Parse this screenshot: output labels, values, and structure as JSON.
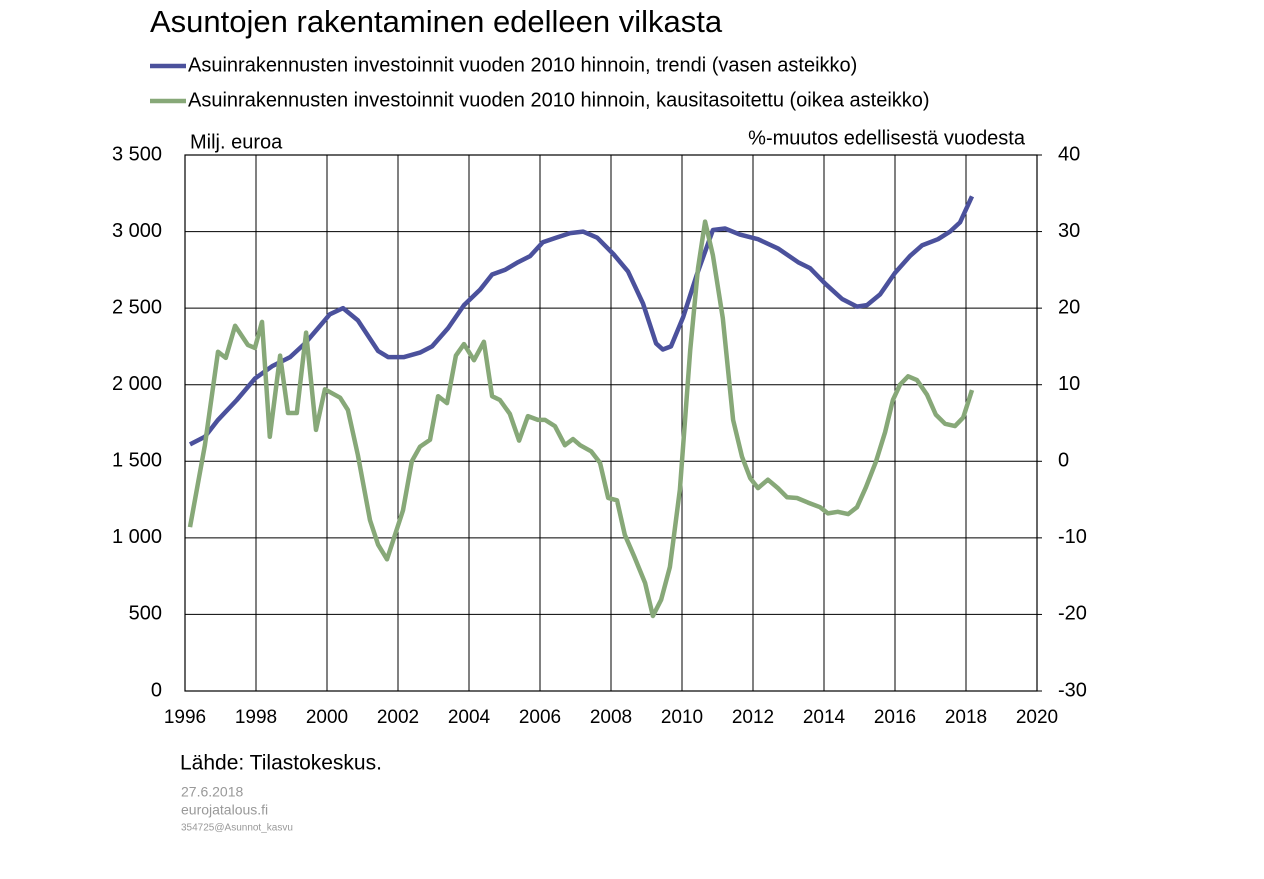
{
  "chart_data": {
    "type": "line",
    "title": "Asuntojen rakentaminen edelleen vilkasta",
    "ylabel": "Milj. euroa",
    "y2label": "%-muutos edellisestä vuodesta",
    "source": "Lähde: Tilastokeskus.",
    "date": "27.6.2018",
    "site": "eurojatalous.fi",
    "code": "354725@Asunnot_kasvu",
    "grid": true,
    "legend": "top",
    "xlim": [
      1996,
      2020
    ],
    "xticks": [
      1996,
      1998,
      2000,
      2002,
      2004,
      2006,
      2008,
      2010,
      2012,
      2014,
      2016,
      2018,
      2020
    ],
    "ylim": [
      0,
      3500
    ],
    "yticks": [
      0,
      500,
      {
        "value": 1000,
        "label": "1 000"
      },
      {
        "value": 1500,
        "label": "1 500"
      },
      {
        "value": 2000,
        "label": "2 000"
      },
      {
        "value": 2500,
        "label": "2 500"
      },
      {
        "value": 3000,
        "label": "3 000"
      },
      {
        "value": 3500,
        "label": "3 500"
      }
    ],
    "y2lim": [
      -30,
      40
    ],
    "y2ticks": [
      -30,
      -20,
      -10,
      0,
      10,
      20,
      30,
      40
    ],
    "series": [
      {
        "name": "Asuinrakennusten investoinnit vuoden 2010 hinnoin, trendi (vasen asteikko)",
        "color": "#4b519c",
        "x": [
          1996.14,
          1996.56,
          1996.93,
          1997.46,
          1997.97,
          1998.45,
          1998.96,
          1999.38,
          1999.75,
          2000.08,
          2000.45,
          2000.87,
          2001.44,
          2001.72,
          2002.17,
          2002.62,
          2002.96,
          2003.41,
          2003.86,
          2004.31,
          2004.65,
          2005.01,
          2005.38,
          2005.72,
          2006.08,
          2006.45,
          2006.85,
          2007.21,
          2007.61,
          2008.08,
          2008.48,
          2008.9,
          2009.27,
          2009.46,
          2009.69,
          2010.03,
          2010.42,
          2010.87,
          2011.21,
          2011.63,
          2012.14,
          2012.7,
          2013.27,
          2013.61,
          2014.03,
          2014.51,
          2014.93,
          2015.21,
          2015.58,
          2016.0,
          2016.42,
          2016.76,
          2017.21,
          2017.55,
          2017.83,
          2018.17
        ],
        "values": [
          1610,
          1660,
          1770,
          1900,
          2040,
          2120,
          2180,
          2270,
          2370,
          2460,
          2500,
          2420,
          2220,
          2180,
          2180,
          2210,
          2250,
          2370,
          2520,
          2620,
          2720,
          2750,
          2800,
          2840,
          2930,
          2960,
          2990,
          3000,
          2960,
          2850,
          2740,
          2530,
          2270,
          2230,
          2250,
          2440,
          2720,
          3010,
          3020,
          2980,
          2950,
          2890,
          2800,
          2760,
          2660,
          2560,
          2510,
          2520,
          2590,
          2730,
          2840,
          2910,
          2950,
          3000,
          3060,
          3230
        ]
      },
      {
        "name": "Asuinrakennusten investoinnit vuoden 2010 hinnoin, kausitasoitettu (oikea asteikko)",
        "color": "#87a878",
        "axis": "y2",
        "x": [
          1996.14,
          1996.56,
          1996.93,
          1997.15,
          1997.41,
          1997.77,
          1997.97,
          1998.17,
          1998.39,
          1998.68,
          1998.9,
          1999.15,
          1999.41,
          1999.69,
          1999.94,
          2000.37,
          2000.59,
          2000.87,
          2001.21,
          2001.44,
          2001.69,
          2002.14,
          2002.39,
          2002.62,
          2002.9,
          2003.13,
          2003.38,
          2003.63,
          2003.86,
          2004.14,
          2004.42,
          2004.65,
          2004.87,
          2005.15,
          2005.41,
          2005.66,
          2005.94,
          2006.14,
          2006.42,
          2006.7,
          2006.93,
          2007.13,
          2007.44,
          2007.69,
          2007.92,
          2008.17,
          2008.39,
          2008.65,
          2008.96,
          2009.18,
          2009.41,
          2009.66,
          2009.94,
          2010.23,
          2010.45,
          2010.65,
          2010.87,
          2011.15,
          2011.44,
          2011.69,
          2011.92,
          2012.14,
          2012.42,
          2012.7,
          2012.96,
          2013.24,
          2013.55,
          2013.89,
          2014.11,
          2014.39,
          2014.68,
          2014.93,
          2015.18,
          2015.46,
          2015.72,
          2015.94,
          2016.14,
          2016.37,
          2016.62,
          2016.9,
          2017.15,
          2017.41,
          2017.69,
          2017.92,
          2018.17
        ],
        "values": [
          -8.6,
          2.1,
          14.3,
          13.5,
          17.7,
          15.2,
          14.8,
          18.2,
          3.2,
          13.8,
          6.3,
          6.3,
          16.8,
          4.1,
          9.4,
          8.3,
          6.7,
          0.8,
          -7.7,
          -10.9,
          -12.8,
          -6.4,
          0.0,
          1.9,
          2.8,
          8.5,
          7.6,
          13.8,
          15.3,
          13.2,
          15.6,
          8.5,
          8.0,
          6.2,
          2.7,
          5.9,
          5.4,
          5.4,
          4.6,
          2.1,
          2.9,
          2.1,
          1.3,
          -0.2,
          -4.8,
          -5.1,
          -9.6,
          -12.4,
          -15.9,
          -20.2,
          -18.1,
          -13.8,
          -3.7,
          14.5,
          25.2,
          31.3,
          26.9,
          18.7,
          5.4,
          0.6,
          -2.2,
          -3.5,
          -2.4,
          -3.5,
          -4.7,
          -4.8,
          -5.4,
          -6.0,
          -6.8,
          -6.6,
          -6.9,
          -6.0,
          -3.4,
          -0.1,
          3.8,
          8.0,
          10.0,
          11.1,
          10.6,
          8.7,
          6.1,
          4.9,
          4.6,
          5.7,
          9.3
        ]
      }
    ]
  }
}
